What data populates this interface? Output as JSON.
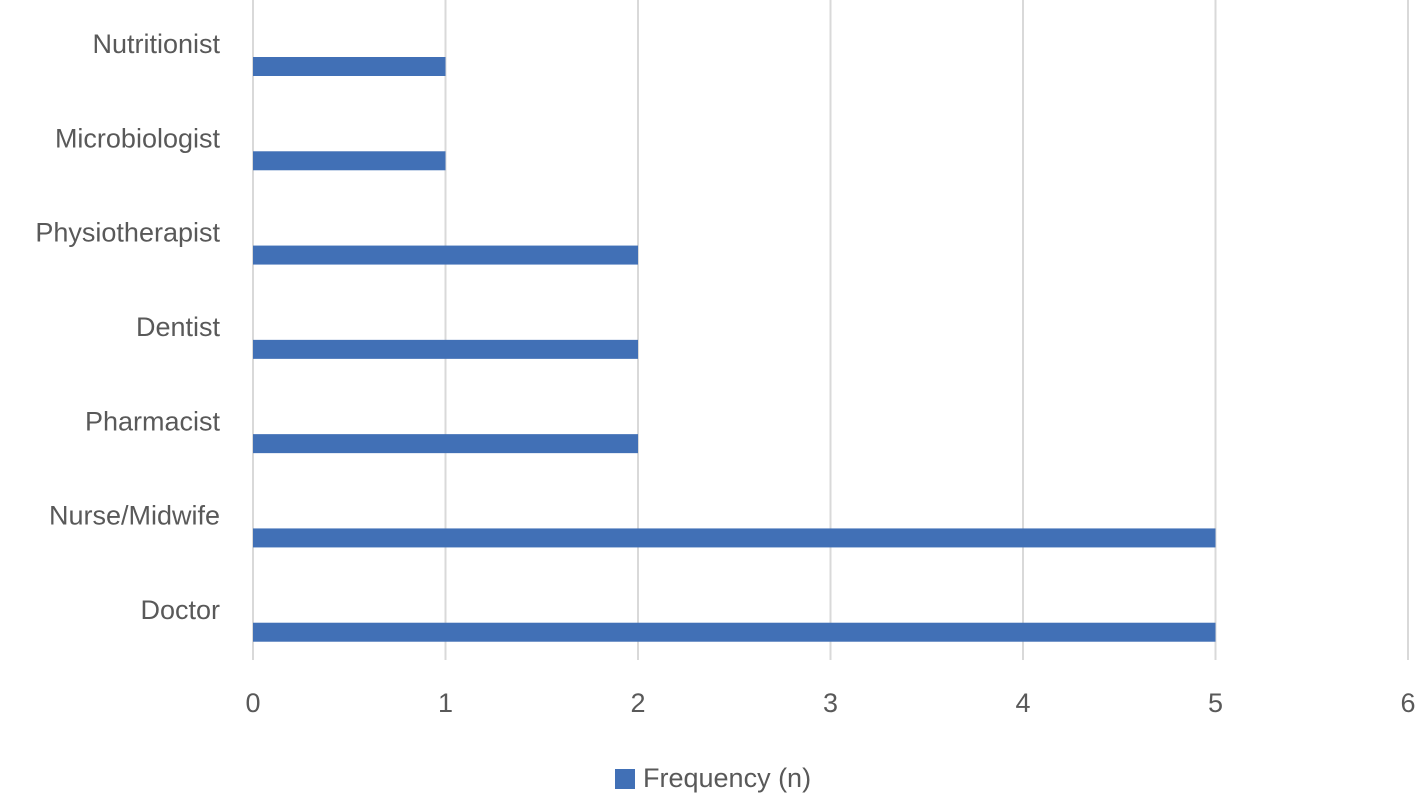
{
  "chart_data": {
    "type": "bar",
    "orientation": "horizontal",
    "categories": [
      "Doctor",
      "Nurse/Midwife",
      "Pharmacist",
      "Dentist",
      "Physiotherapist",
      "Microbiologist",
      "Nutritionist"
    ],
    "series": [
      {
        "name": "Frequency (n)",
        "color": "#4170b6",
        "values": [
          5,
          5,
          2,
          2,
          2,
          1,
          1
        ]
      }
    ],
    "xlim": [
      0,
      6
    ],
    "xticks": [
      0,
      1,
      2,
      3,
      4,
      5,
      6
    ],
    "grid": true,
    "legend": "bottom"
  }
}
